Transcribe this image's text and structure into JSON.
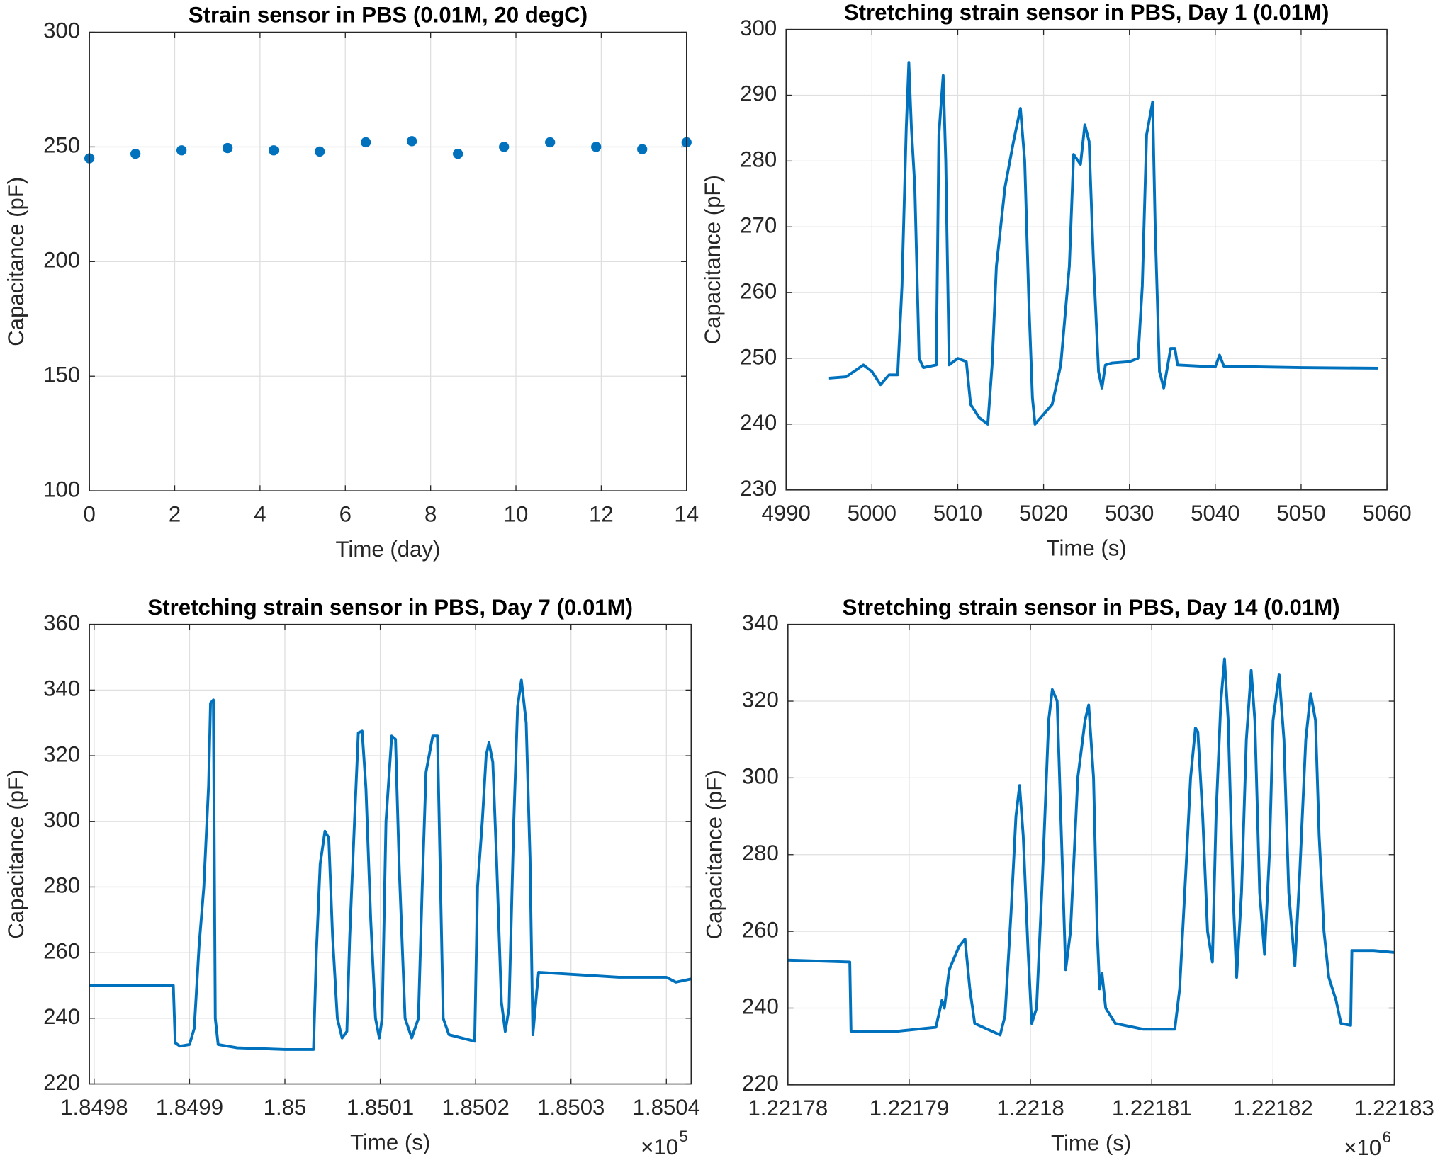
{
  "chart_data": [
    {
      "type": "scatter",
      "title": "Strain sensor in PBS (0.01M, 20 degC)",
      "xlabel": "Time (day)",
      "ylabel": "Capacitance (pF)",
      "color": "#0072bd",
      "grid": true,
      "x": [
        0,
        1.08,
        2.16,
        3.24,
        4.32,
        5.4,
        6.48,
        7.56,
        8.64,
        9.72,
        10.8,
        11.88,
        12.96,
        14
      ],
      "values": [
        245,
        247,
        248.5,
        249.5,
        248.5,
        248,
        252,
        252.5,
        247,
        250,
        252,
        250,
        249,
        252
      ],
      "xlim": [
        0,
        14
      ],
      "xticks": [
        0,
        2,
        4,
        6,
        8,
        10,
        12,
        14
      ],
      "ylim": [
        100,
        300
      ],
      "yticks": [
        100,
        150,
        200,
        250,
        300
      ]
    },
    {
      "type": "line",
      "title": "Stretching strain sensor in PBS, Day 1 (0.01M)",
      "xlabel": "Time (s)",
      "ylabel": "Capacitance (pF)",
      "color": "#0072bd",
      "grid": true,
      "x": [
        4995,
        4997,
        4999,
        5000,
        5001,
        5002,
        5003,
        5003.5,
        5004,
        5004.3,
        5004.6,
        5005,
        5005.5,
        5006,
        5007.5,
        5007.8,
        5008.3,
        5008.6,
        5009,
        5010,
        5011,
        5011.5,
        5012.5,
        5013.5,
        5014,
        5014.5,
        5015.5,
        5016.5,
        5017.3,
        5017.8,
        5018.3,
        5018.7,
        5019,
        5020,
        5021,
        5022,
        5023,
        5023.5,
        5024.3,
        5024.8,
        5025.3,
        5025.8,
        5026.4,
        5026.8,
        5027.2,
        5028,
        5030,
        5031,
        5031.5,
        5032,
        5032.7,
        5033,
        5033.5,
        5034,
        5034.8,
        5035.3,
        5035.6,
        5040,
        5040.5,
        5041,
        5050,
        5059
      ],
      "values": [
        247,
        247.2,
        249,
        248,
        246,
        247.5,
        247.5,
        261,
        285,
        295,
        285,
        276,
        250,
        248.6,
        249,
        284,
        293,
        280,
        249,
        250,
        249.5,
        243,
        241,
        240,
        249,
        264,
        276,
        283,
        288,
        280,
        258,
        244,
        240,
        241.5,
        243,
        249,
        264,
        281,
        279.5,
        285.5,
        283,
        265,
        248,
        245.5,
        249,
        249.3,
        249.5,
        250,
        261,
        284,
        289,
        270,
        248,
        245.5,
        251.5,
        251.5,
        249,
        248.7,
        250.5,
        248.8,
        248.6,
        248.5
      ],
      "xlim": [
        4990,
        5060
      ],
      "xticks": [
        4990,
        5000,
        5010,
        5020,
        5030,
        5040,
        5050,
        5060
      ],
      "ylim": [
        230,
        300
      ],
      "yticks": [
        230,
        240,
        250,
        260,
        270,
        280,
        290,
        300
      ]
    },
    {
      "type": "line",
      "title": "Stretching strain sensor in PBS, Day 7 (0.01M)",
      "xlabel": "Time (s)",
      "ylabel": "Capacitance (pF)",
      "color": "#0072bd",
      "grid": true,
      "x_multiplier": "×10",
      "x_exponent": "5",
      "x": [
        184979.5,
        184988.3,
        184988.5,
        184989,
        184990,
        184990.5,
        184991,
        184991.5,
        184992,
        184992.2,
        184992.5,
        184992.7,
        184993,
        184995,
        185000,
        185003,
        185003.3,
        185003.7,
        185004.2,
        185004.6,
        185005,
        185005.5,
        185006,
        185006.5,
        185006.8,
        185007.3,
        185007.7,
        185008.1,
        185008.5,
        185009,
        185009.5,
        185009.9,
        185010.2,
        185010.6,
        185011.2,
        185011.6,
        185012,
        185012.6,
        185013.3,
        185014,
        185014.4,
        185014.8,
        185015.5,
        185016,
        185016.6,
        185017.2,
        185019.9,
        185020.2,
        185020.7,
        185021.1,
        185021.4,
        185021.8,
        185022.2,
        185022.7,
        185023.1,
        185023.5,
        185024,
        185024.4,
        185024.8,
        185025.3,
        185025.7,
        185026,
        185026.4,
        185026.6,
        185035,
        185040,
        185041,
        185042.6
      ],
      "values": [
        250,
        250,
        232.5,
        231.5,
        232,
        237,
        262,
        280,
        311,
        336,
        337,
        240,
        232,
        231,
        230.5,
        230.5,
        260,
        287,
        297,
        295,
        265,
        240,
        234,
        236,
        265,
        300,
        327,
        327.5,
        310,
        270,
        240,
        234,
        240,
        300,
        326,
        325,
        285,
        240,
        234,
        240,
        280,
        315,
        326,
        326,
        240,
        235,
        233,
        280,
        300,
        320,
        324,
        318,
        288,
        245,
        236,
        243,
        300,
        335,
        343,
        330,
        289,
        235,
        248,
        254,
        252.5,
        252.5,
        251,
        252
      ],
      "xlim": [
        184979.5,
        185042.6
      ],
      "xticks": [
        {
          "value": 184980,
          "label": "1.8498"
        },
        {
          "value": 184990,
          "label": "1.8499"
        },
        {
          "value": 185000,
          "label": "1.85"
        },
        {
          "value": 185010,
          "label": "1.8501"
        },
        {
          "value": 185020,
          "label": "1.8502"
        },
        {
          "value": 185030,
          "label": "1.8503"
        },
        {
          "value": 185040,
          "label": "1.8504"
        }
      ],
      "ylim": [
        220,
        360
      ],
      "yticks": [
        220,
        240,
        260,
        280,
        300,
        320,
        340,
        360
      ]
    },
    {
      "type": "line",
      "title": "Stretching strain sensor in PBS, Day 14 (0.01M)",
      "xlabel": "Time (s)",
      "ylabel": "Capacitance (pF)",
      "color": "#0072bd",
      "grid": true,
      "x_multiplier": "×10",
      "x_exponent": "6",
      "x": [
        1221780,
        1221785.1,
        1221785.2,
        1221789.1,
        1221792.2,
        1221792.7,
        1221792.9,
        1221793.3,
        1221794.1,
        1221794.6,
        1221795,
        1221795.4,
        1221797.5,
        1221797.9,
        1221798.4,
        1221798.8,
        1221799.1,
        1221799.4,
        1221799.8,
        1221800.1,
        1221800.5,
        1221801,
        1221801.5,
        1221801.8,
        1221802.2,
        1221802.6,
        1221802.9,
        1221803.3,
        1221803.9,
        1221804.5,
        1221804.8,
        1221805.2,
        1221805.5,
        1221805.7,
        1221805.9,
        1221806.2,
        1221807,
        1221809.3,
        1221811.9,
        1221812.3,
        1221812.8,
        1221813.2,
        1221813.6,
        1221813.8,
        1221814.2,
        1221814.6,
        1221815,
        1221815.3,
        1221815.7,
        1221816,
        1221816.3,
        1221816.7,
        1221817,
        1221817.4,
        1221817.8,
        1221818.2,
        1221818.5,
        1221818.9,
        1221819.3,
        1221819.7,
        1221820,
        1221820.5,
        1221820.9,
        1221821.3,
        1221821.8,
        1221822.2,
        1221822.7,
        1221823.1,
        1221823.5,
        1221823.8,
        1221824.2,
        1221824.6,
        1221825.2,
        1221825.6,
        1221826.4,
        1221826.5,
        1221828.3,
        1221830
      ],
      "values": [
        252.5,
        252,
        234,
        234,
        235,
        242,
        240,
        250,
        256,
        258,
        245,
        236,
        233,
        238,
        265,
        290,
        298,
        285,
        255,
        236,
        240,
        275,
        315,
        323,
        320,
        280,
        250,
        260,
        300,
        315,
        319,
        300,
        260,
        245,
        249,
        240,
        236,
        234.5,
        234.5,
        245,
        275,
        300,
        313,
        312,
        290,
        260,
        252,
        290,
        320,
        331,
        315,
        270,
        248,
        270,
        310,
        328,
        315,
        270,
        254,
        280,
        315,
        327,
        310,
        270,
        251,
        275,
        310,
        322,
        315,
        285,
        260,
        248,
        242,
        236,
        235.5,
        255,
        255,
        254.5
      ],
      "xlim": [
        1221780,
        1221830
      ],
      "xticks": [
        {
          "value": 1221780,
          "label": "1.22178"
        },
        {
          "value": 1221790,
          "label": "1.22179"
        },
        {
          "value": 1221800,
          "label": "1.2218"
        },
        {
          "value": 1221810,
          "label": "1.22181"
        },
        {
          "value": 1221820,
          "label": "1.22182"
        },
        {
          "value": 1221830,
          "label": "1.22183"
        }
      ],
      "ylim": [
        220,
        340
      ],
      "yticks": [
        220,
        240,
        260,
        280,
        300,
        320,
        340
      ]
    }
  ]
}
